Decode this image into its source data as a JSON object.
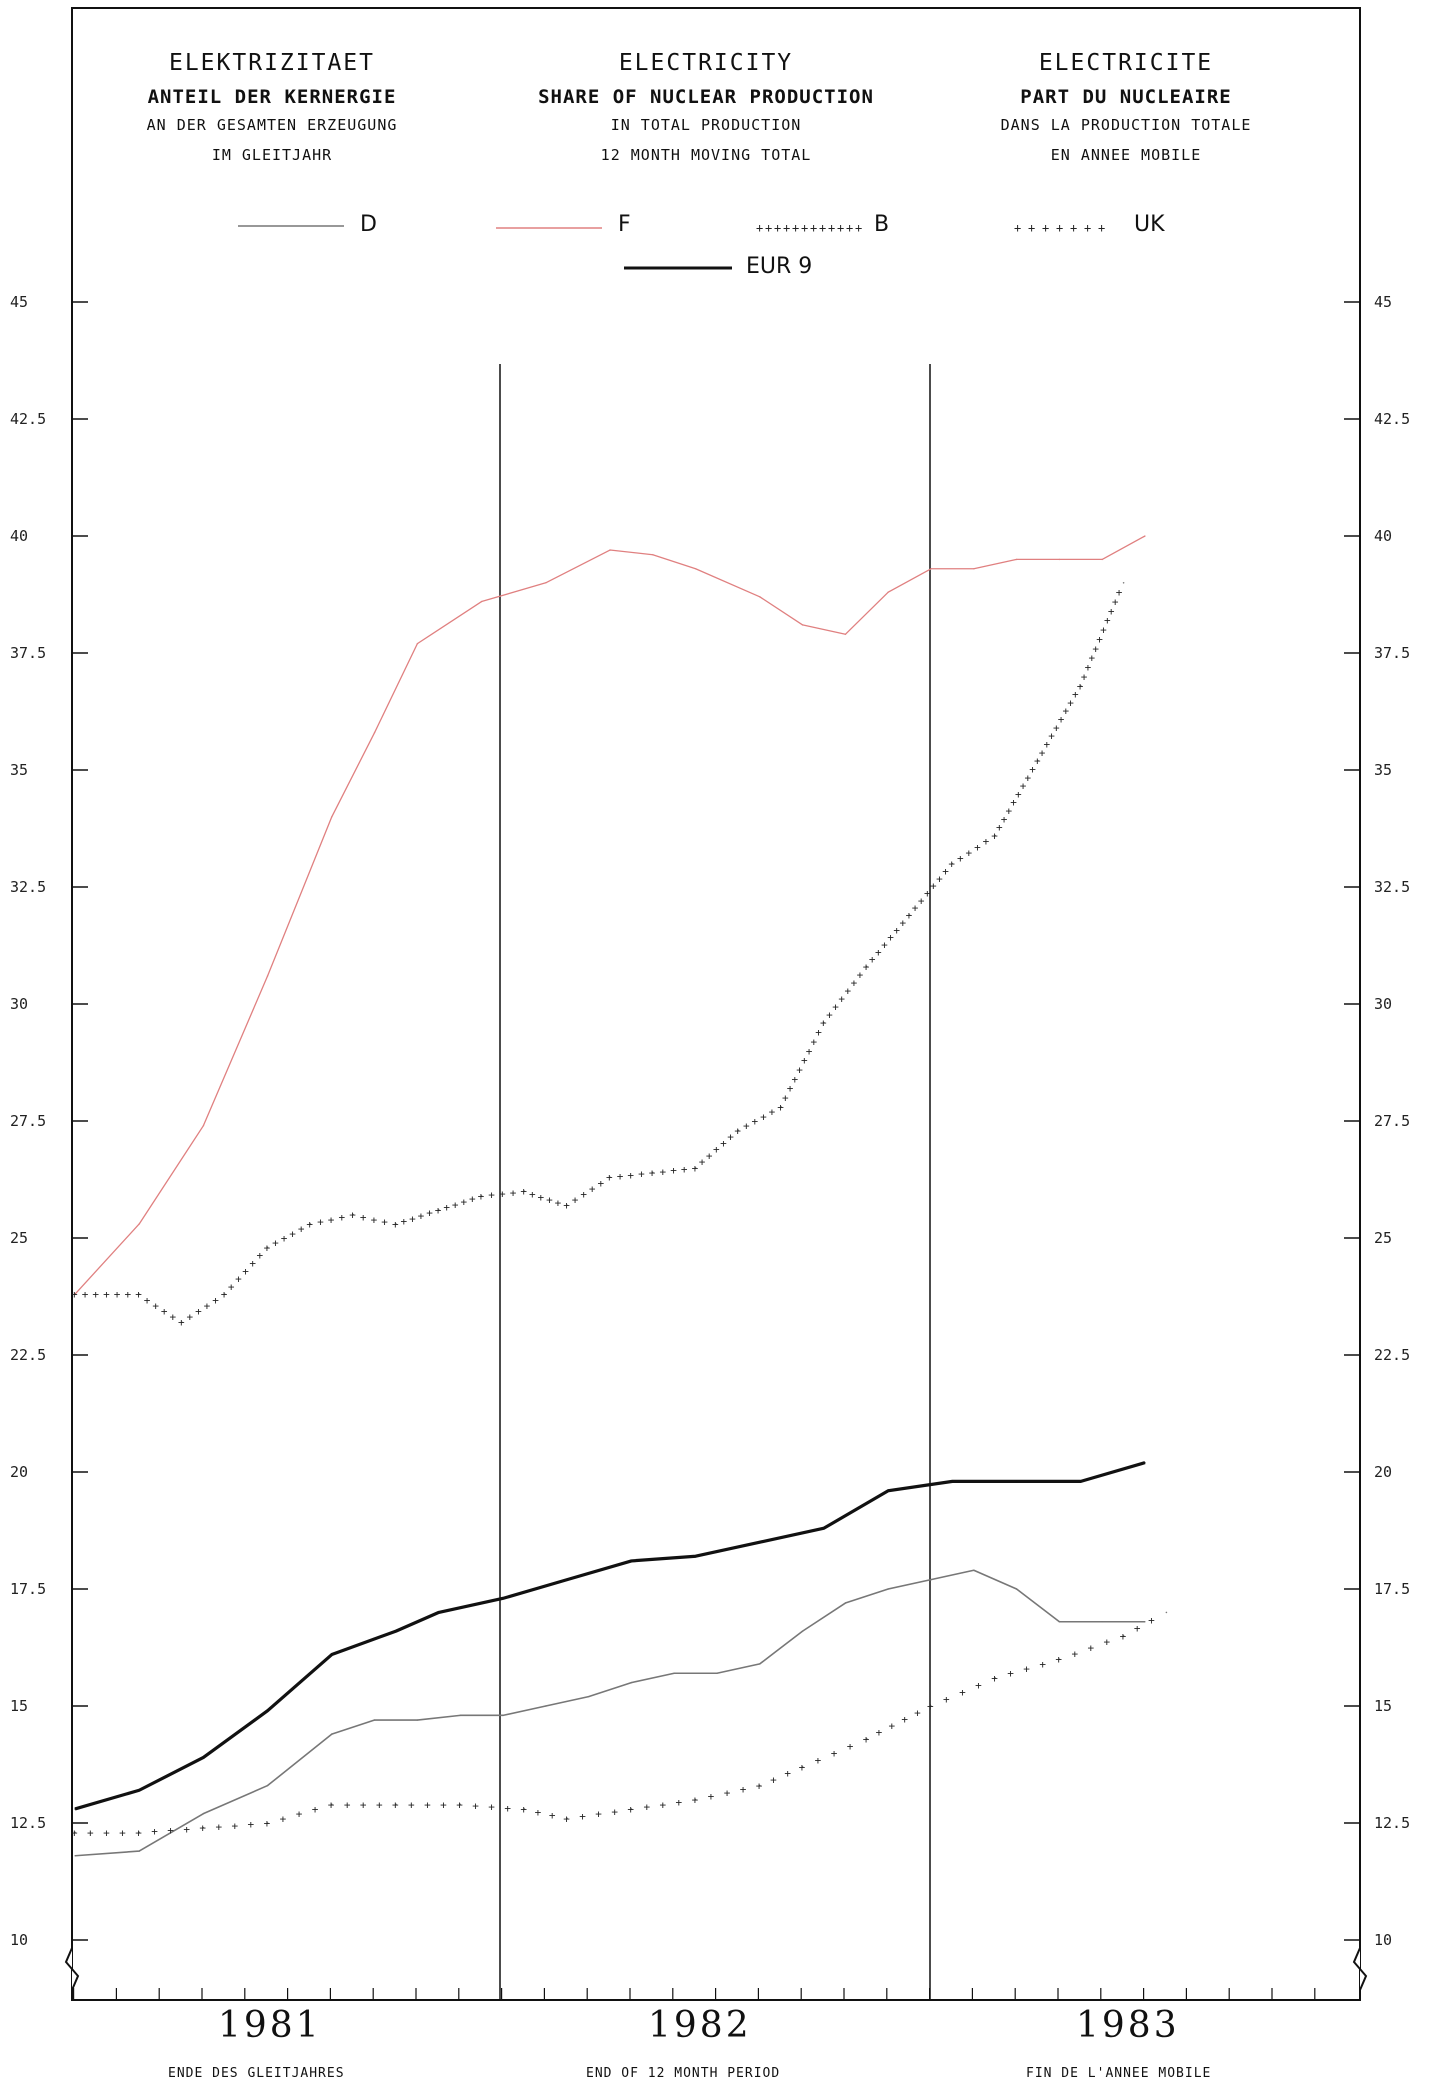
{
  "titles": {
    "de": {
      "line1": "ELEKTRIZITAET",
      "line2": "ANTEIL DER KERNERGIE",
      "line3": "AN DER GESAMTEN ERZEUGUNG",
      "line4": "IM GLEITJAHR"
    },
    "en": {
      "line1": "ELECTRICITY",
      "line2": "SHARE OF NUCLEAR PRODUCTION",
      "line3": "IN TOTAL PRODUCTION",
      "line4": "12 MONTH MOVING TOTAL"
    },
    "fr": {
      "line1": "ELECTRICITE",
      "line2": "PART DU NUCLEAIRE",
      "line3": "DANS LA PRODUCTION TOTALE",
      "line4": "EN ANNEE MOBILE"
    }
  },
  "legend": {
    "d": "D",
    "f": "F",
    "b": "B",
    "uk": "UK",
    "eur9": "EUR 9"
  },
  "footer": {
    "de": "ENDE DES GLEITJAHRES",
    "en": "END OF 12 MONTH PERIOD",
    "fr": "FIN DE L'ANNEE MOBILE"
  },
  "chart_data": {
    "type": "line",
    "title": "ELECTRICITY - SHARE OF NUCLEAR PRODUCTION",
    "y_ticks": [
      "10",
      "12.5",
      "15",
      "17.5",
      "20",
      "22.5",
      "25",
      "27.5",
      "30",
      "32.5",
      "35",
      "37.5",
      "40",
      "42.5",
      "45"
    ],
    "ylim": [
      10,
      45
    ],
    "x_tick_labels": [
      "1981",
      "1982",
      "1983"
    ],
    "x_range_months": [
      0,
      29
    ],
    "colors": {
      "D": "#777777",
      "F": "#e08080",
      "B": "#222222",
      "UK": "#222222",
      "EUR 9": "#111111"
    },
    "grid": false,
    "series": [
      {
        "name": "F",
        "style": "thin",
        "values": [
          [
            0,
            23.8
          ],
          [
            1.5,
            25.3
          ],
          [
            3,
            27.4
          ],
          [
            4.5,
            30.6
          ],
          [
            6,
            34.0
          ],
          [
            7,
            35.8
          ],
          [
            8,
            37.7
          ],
          [
            9.5,
            38.6
          ],
          [
            11,
            39.0
          ],
          [
            12.5,
            39.7
          ],
          [
            13.5,
            39.6
          ],
          [
            14.5,
            39.3
          ],
          [
            16,
            38.7
          ],
          [
            17,
            38.1
          ],
          [
            18,
            37.9
          ],
          [
            19,
            38.8
          ],
          [
            20,
            39.3
          ],
          [
            21,
            39.3
          ],
          [
            22,
            39.5
          ],
          [
            23,
            39.5
          ],
          [
            24,
            39.5
          ],
          [
            25,
            40.0
          ]
        ]
      },
      {
        "name": "B",
        "style": "cross-dotted",
        "values": [
          [
            0,
            23.8
          ],
          [
            1.5,
            23.8
          ],
          [
            2.5,
            23.2
          ],
          [
            3.5,
            23.8
          ],
          [
            4.5,
            24.8
          ],
          [
            5.5,
            25.3
          ],
          [
            6.5,
            25.5
          ],
          [
            7.5,
            25.3
          ],
          [
            8.5,
            25.6
          ],
          [
            9.5,
            25.9
          ],
          [
            10.5,
            26.0
          ],
          [
            11.5,
            25.7
          ],
          [
            12.5,
            26.3
          ],
          [
            13.5,
            26.4
          ],
          [
            14.5,
            26.5
          ],
          [
            15.5,
            27.3
          ],
          [
            16.5,
            27.8
          ],
          [
            17.5,
            29.6
          ],
          [
            18.5,
            30.8
          ],
          [
            19.5,
            31.9
          ],
          [
            20.5,
            33.0
          ],
          [
            21.5,
            33.6
          ],
          [
            22.5,
            35.2
          ],
          [
            23.5,
            36.8
          ],
          [
            24.5,
            39.0
          ]
        ]
      },
      {
        "name": "EUR 9",
        "style": "thick",
        "values": [
          [
            0,
            12.8
          ],
          [
            1.5,
            13.2
          ],
          [
            3,
            13.9
          ],
          [
            4.5,
            14.9
          ],
          [
            6,
            16.1
          ],
          [
            7.5,
            16.6
          ],
          [
            8.5,
            17.0
          ],
          [
            10,
            17.3
          ],
          [
            11.5,
            17.7
          ],
          [
            13,
            18.1
          ],
          [
            14.5,
            18.2
          ],
          [
            16,
            18.5
          ],
          [
            17.5,
            18.8
          ],
          [
            19,
            19.6
          ],
          [
            20.5,
            19.8
          ],
          [
            22,
            19.8
          ],
          [
            23.5,
            19.8
          ],
          [
            25,
            20.2
          ]
        ]
      },
      {
        "name": "D",
        "style": "thin-dark",
        "values": [
          [
            0,
            11.8
          ],
          [
            1.5,
            11.9
          ],
          [
            3,
            12.7
          ],
          [
            4.5,
            13.3
          ],
          [
            6,
            14.4
          ],
          [
            7,
            14.7
          ],
          [
            8,
            14.7
          ],
          [
            9,
            14.8
          ],
          [
            10,
            14.8
          ],
          [
            11,
            15.0
          ],
          [
            12,
            15.2
          ],
          [
            13,
            15.5
          ],
          [
            14,
            15.7
          ],
          [
            15,
            15.7
          ],
          [
            16,
            15.9
          ],
          [
            17,
            16.6
          ],
          [
            18,
            17.2
          ],
          [
            19,
            17.5
          ],
          [
            20,
            17.7
          ],
          [
            21,
            17.9
          ],
          [
            22,
            17.5
          ],
          [
            23,
            16.8
          ],
          [
            24,
            16.8
          ],
          [
            25,
            16.8
          ]
        ]
      },
      {
        "name": "UK",
        "style": "plus-dotted",
        "values": [
          [
            0,
            12.3
          ],
          [
            1.5,
            12.3
          ],
          [
            3,
            12.4
          ],
          [
            4.5,
            12.5
          ],
          [
            6,
            12.9
          ],
          [
            7.5,
            12.9
          ],
          [
            9,
            12.9
          ],
          [
            10.5,
            12.8
          ],
          [
            11.5,
            12.6
          ],
          [
            13,
            12.8
          ],
          [
            14.5,
            13.0
          ],
          [
            16,
            13.3
          ],
          [
            17,
            13.7
          ],
          [
            18.5,
            14.3
          ],
          [
            20,
            15.0
          ],
          [
            21.5,
            15.6
          ],
          [
            23,
            16.0
          ],
          [
            24.5,
            16.5
          ],
          [
            25.5,
            17.0
          ]
        ]
      }
    ]
  }
}
